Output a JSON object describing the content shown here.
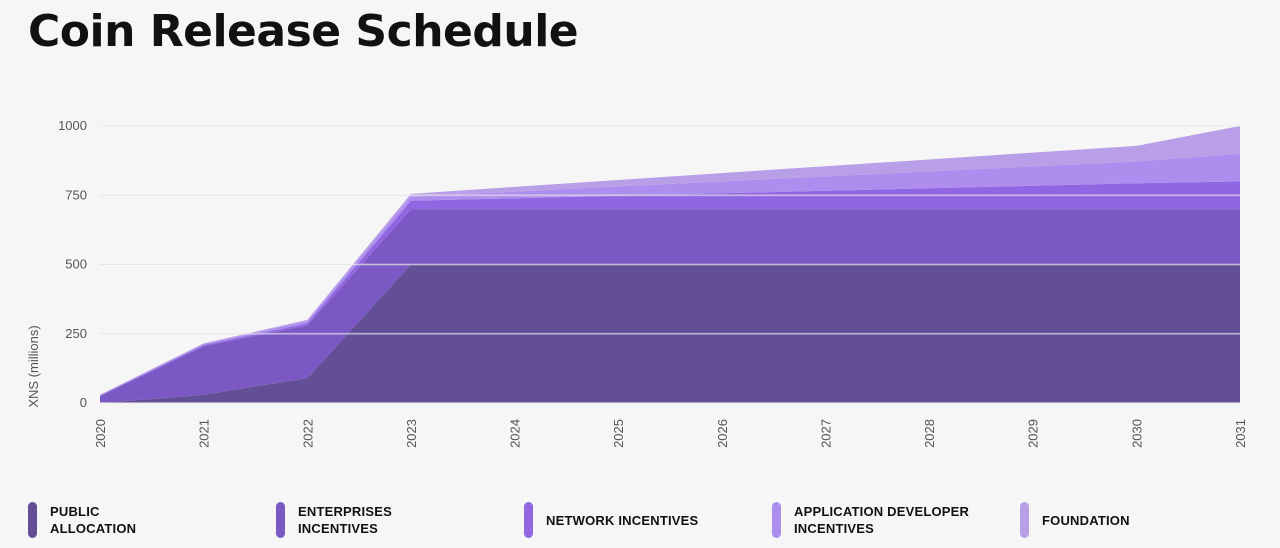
{
  "page": {
    "title": "Coin Release Schedule"
  },
  "legend": [
    {
      "label": "PUBLIC\nALLOCATION",
      "color": "#624f95"
    },
    {
      "label": "ENTERPRISES\nINCENTIVES",
      "color": "#7b58c4"
    },
    {
      "label": "NETWORK INCENTIVES",
      "color": "#9166e2"
    },
    {
      "label": "APPLICATION DEVELOPER\nINCENTIVES",
      "color": "#ad8ded"
    },
    {
      "label": "FOUNDATION",
      "color": "#b99ee8"
    }
  ],
  "chart_data": {
    "type": "area",
    "stacked": true,
    "title": "Coin Release Schedule",
    "ylabel": "XNS (millions)",
    "xlabel": "",
    "x": [
      "2020",
      "2021",
      "2022",
      "2023",
      "2024",
      "2025",
      "2026",
      "2027",
      "2028",
      "2029",
      "2030",
      "2031"
    ],
    "ylim": [
      0,
      1000
    ],
    "yticks": [
      0,
      250,
      500,
      750,
      1000
    ],
    "grid": true,
    "legend_position": "bottom",
    "series": [
      {
        "name": "PUBLIC ALLOCATION",
        "color": "#624f95",
        "values": [
          0,
          30,
          90,
          500,
          500,
          500,
          500,
          500,
          500,
          500,
          500,
          500
        ]
      },
      {
        "name": "ENTERPRISES INCENTIVES",
        "color": "#7b58c4",
        "values": [
          25,
          175,
          190,
          200,
          200,
          200,
          200,
          200,
          200,
          200,
          200,
          200
        ]
      },
      {
        "name": "NETWORK INCENTIVES",
        "color": "#9166e2",
        "values": [
          2,
          4,
          8,
          30,
          39,
          48,
          57,
          66,
          75,
          84,
          93,
          100
        ]
      },
      {
        "name": "APPLICATION DEVELOPER INCENTIVES",
        "color": "#ad8ded",
        "values": [
          2,
          4,
          8,
          15,
          24,
          34,
          43,
          52,
          61,
          70,
          79,
          100
        ]
      },
      {
        "name": "FOUNDATION",
        "color": "#b99ee8",
        "values": [
          1,
          2,
          4,
          10,
          17,
          23,
          30,
          37,
          43,
          50,
          56,
          100
        ]
      }
    ]
  }
}
